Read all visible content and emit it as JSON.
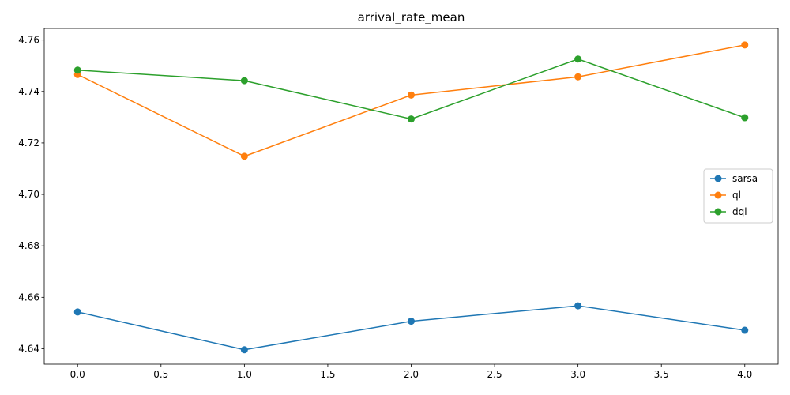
{
  "chart_data": {
    "type": "line",
    "title": "arrival_rate_mean",
    "xlabel": "",
    "ylabel": "",
    "x": [
      0,
      1,
      2,
      3,
      4
    ],
    "xlim": [
      -0.2,
      4.2
    ],
    "ylim": [
      4.634,
      4.7645
    ],
    "xticks": [
      0.0,
      0.5,
      1.0,
      1.5,
      2.0,
      2.5,
      3.0,
      3.5,
      4.0
    ],
    "xtick_labels": [
      "0.0",
      "0.5",
      "1.0",
      "1.5",
      "2.0",
      "2.5",
      "3.0",
      "3.5",
      "4.0"
    ],
    "yticks": [
      4.64,
      4.66,
      4.68,
      4.7,
      4.72,
      4.74,
      4.76
    ],
    "ytick_labels": [
      "4.64",
      "4.66",
      "4.68",
      "4.70",
      "4.72",
      "4.74",
      "4.76"
    ],
    "grid": false,
    "legend_position": "center-right",
    "series": [
      {
        "name": "sarsa",
        "color": "#1f77b4",
        "values": [
          4.6543,
          4.6396,
          4.6507,
          4.6567,
          4.6472
        ]
      },
      {
        "name": "ql",
        "color": "#ff7f0e",
        "values": [
          4.7466,
          4.7148,
          4.7386,
          4.7457,
          4.7581
        ]
      },
      {
        "name": "dql",
        "color": "#2ca02c",
        "values": [
          4.7483,
          4.7442,
          4.7293,
          4.7526,
          4.7298
        ]
      }
    ]
  }
}
